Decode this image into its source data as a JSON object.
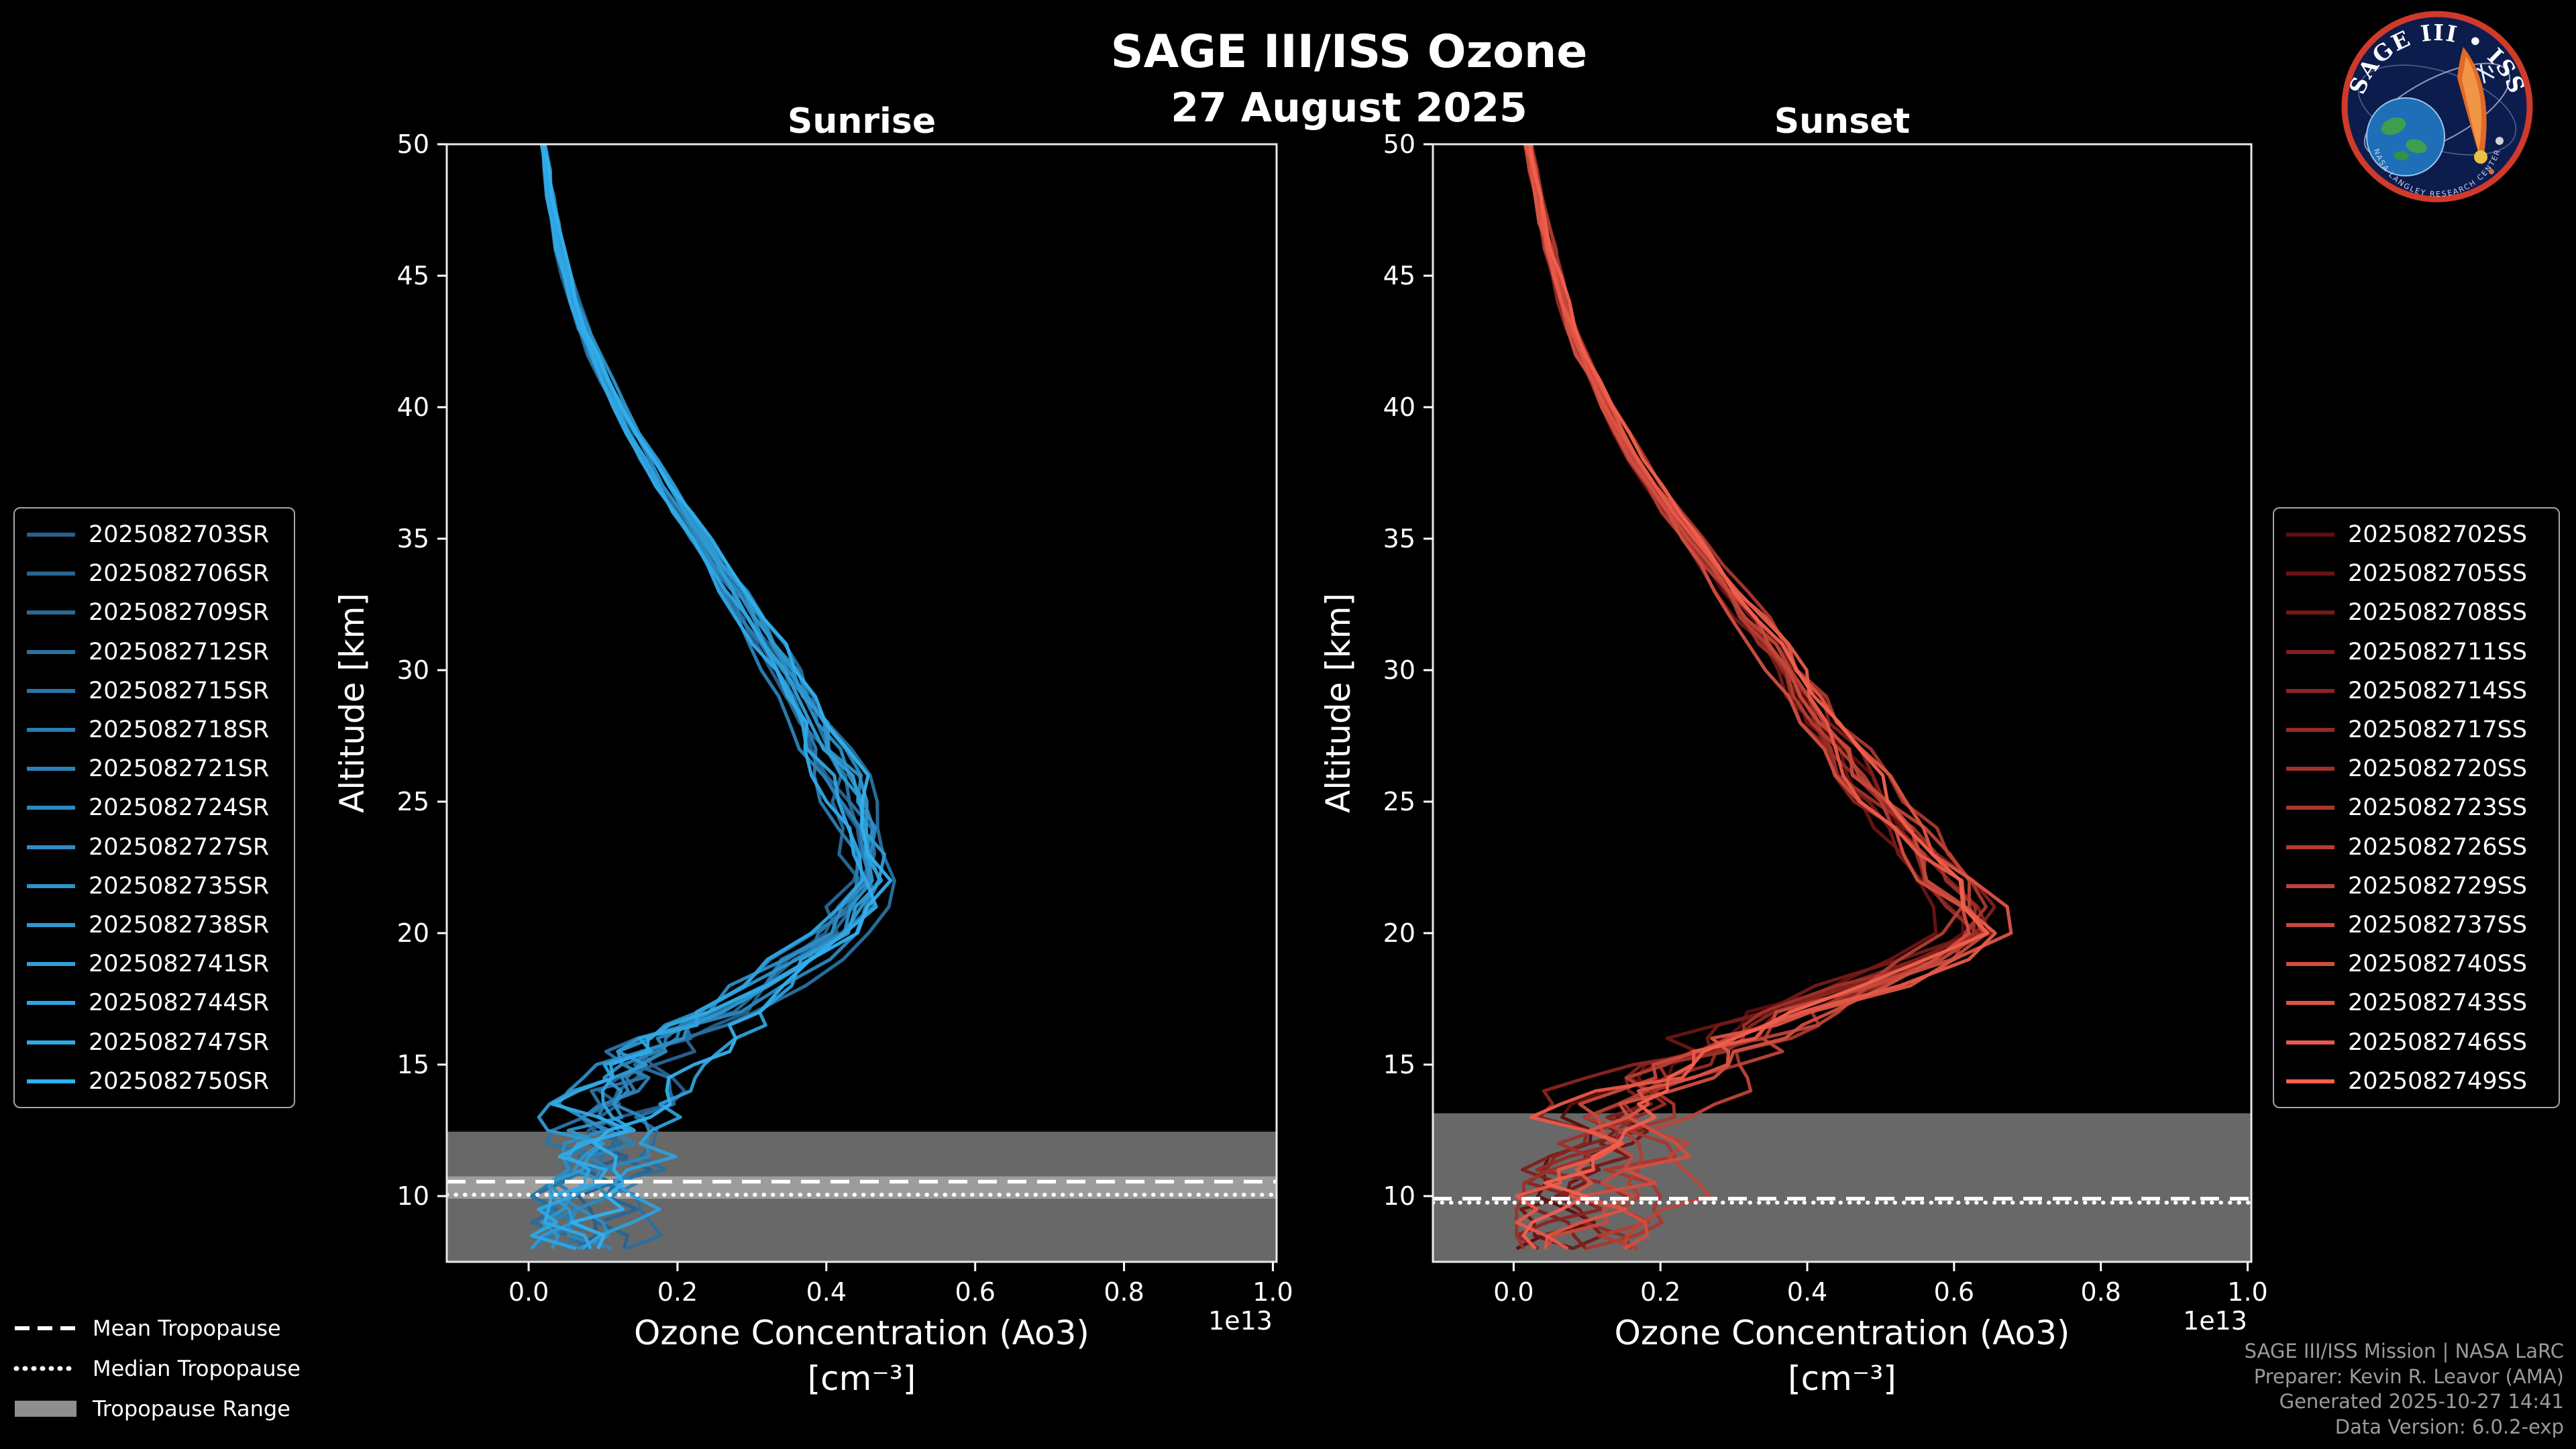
{
  "title": "SAGE III/ISS Ozone",
  "subtitle": "27 August 2025",
  "axes": {
    "ylabel": "Altitude [km]",
    "xlabel_line1": "Ozone Concentration (Ao3)",
    "xlabel_line2": "[cm⁻³]",
    "offset_label": "1e13"
  },
  "chart_data": [
    {
      "type": "line",
      "title": "Sunrise",
      "xlabel": "Ozone Concentration (Ao3) [cm⁻³] ×1e13",
      "ylabel": "Altitude [km]",
      "xlim": [
        -0.11,
        1.005
      ],
      "ylim": [
        7.5,
        50
      ],
      "x_ticks": [
        0.0,
        0.2,
        0.4,
        0.6,
        0.8,
        1.0
      ],
      "x_tick_labels": [
        "0.0",
        "0.2",
        "0.4",
        "0.6",
        "0.8",
        "1.0"
      ],
      "y_ticks": [
        10,
        15,
        20,
        25,
        30,
        35,
        40,
        45,
        50
      ],
      "offset_label": "1e13",
      "legend_position": "outside-left",
      "grid": false,
      "series_labels": [
        "2025082703SR",
        "2025082706SR",
        "2025082709SR",
        "2025082712SR",
        "2025082715SR",
        "2025082718SR",
        "2025082721SR",
        "2025082724SR",
        "2025082727SR",
        "2025082735SR",
        "2025082738SR",
        "2025082741SR",
        "2025082744SR",
        "2025082747SR",
        "2025082750SR"
      ],
      "color_start": "#265f8c",
      "color_end": "#31b0ee",
      "profile_alt": [
        50,
        49,
        48,
        47,
        46,
        45,
        44,
        43,
        42,
        41,
        40,
        39,
        38,
        37,
        36,
        35,
        34,
        33,
        32,
        31,
        30,
        29,
        28,
        27,
        26,
        25,
        24,
        23,
        22,
        21,
        20,
        19,
        18,
        17,
        16.5,
        16,
        15.5,
        15,
        14.5,
        14,
        13.5,
        13,
        12.5,
        12,
        11.5,
        11,
        10.5,
        10,
        9.5,
        9,
        8.5,
        8
      ],
      "profile_value": [
        0.02,
        0.025,
        0.03,
        0.036,
        0.043,
        0.052,
        0.062,
        0.074,
        0.088,
        0.104,
        0.122,
        0.142,
        0.163,
        0.185,
        0.208,
        0.232,
        0.256,
        0.28,
        0.303,
        0.325,
        0.346,
        0.366,
        0.385,
        0.403,
        0.42,
        0.435,
        0.448,
        0.458,
        0.462,
        0.452,
        0.425,
        0.38,
        0.325,
        0.268,
        0.24,
        0.213,
        0.19,
        0.168,
        0.15,
        0.135,
        0.124,
        0.115,
        0.112,
        0.115,
        0.112,
        0.105,
        0.095,
        0.085,
        0.082,
        0.08,
        0.075,
        0.07
      ],
      "tropopause": {
        "mean": 10.55,
        "median": 10.05,
        "range": [
          7.5,
          12.45
        ],
        "inner_range": [
          9.9,
          10.75
        ]
      }
    },
    {
      "type": "line",
      "title": "Sunset",
      "xlabel": "Ozone Concentration (Ao3) [cm⁻³] ×1e13",
      "ylabel": "Altitude [km]",
      "xlim": [
        -0.11,
        1.005
      ],
      "ylim": [
        7.5,
        50
      ],
      "x_ticks": [
        0.0,
        0.2,
        0.4,
        0.6,
        0.8,
        1.0
      ],
      "x_tick_labels": [
        "0.0",
        "0.2",
        "0.4",
        "0.6",
        "0.8",
        "1.0"
      ],
      "y_ticks": [
        10,
        15,
        20,
        25,
        30,
        35,
        40,
        45,
        50
      ],
      "offset_label": "1e13",
      "legend_position": "outside-right",
      "grid": false,
      "series_labels": [
        "2025082702SS",
        "2025082705SS",
        "2025082708SS",
        "2025082711SS",
        "2025082714SS",
        "2025082717SS",
        "2025082720SS",
        "2025082723SS",
        "2025082726SS",
        "2025082729SS",
        "2025082737SS",
        "2025082740SS",
        "2025082743SS",
        "2025082746SS",
        "2025082749SS"
      ],
      "color_start": "#5f0e0e",
      "color_end": "#f2604e",
      "profile_alt": [
        50,
        49,
        48,
        47,
        46,
        45,
        44,
        43,
        42,
        41,
        40,
        39,
        38,
        37,
        36,
        35,
        34,
        33,
        32,
        31,
        30,
        29,
        28,
        27,
        26,
        25,
        24,
        23,
        22,
        21,
        20,
        19,
        18,
        17,
        16.5,
        16,
        15.5,
        15,
        14.5,
        14,
        13.5,
        13,
        12.5,
        12,
        11.5,
        11,
        10.5,
        10,
        9.5,
        9,
        8.5,
        8
      ],
      "profile_value": [
        0.02,
        0.026,
        0.032,
        0.04,
        0.048,
        0.058,
        0.068,
        0.08,
        0.094,
        0.11,
        0.127,
        0.146,
        0.167,
        0.19,
        0.214,
        0.24,
        0.267,
        0.295,
        0.323,
        0.35,
        0.375,
        0.398,
        0.42,
        0.443,
        0.468,
        0.497,
        0.528,
        0.56,
        0.59,
        0.612,
        0.618,
        0.56,
        0.468,
        0.375,
        0.33,
        0.29,
        0.255,
        0.225,
        0.198,
        0.175,
        0.157,
        0.143,
        0.14,
        0.148,
        0.14,
        0.128,
        0.115,
        0.103,
        0.094,
        0.088,
        0.082,
        0.078
      ],
      "tropopause": {
        "mean": 9.9,
        "median": 9.75,
        "range": [
          7.5,
          13.15
        ]
      }
    }
  ],
  "legend_tropopause": [
    {
      "label": "Mean Tropopause",
      "style": "dashed"
    },
    {
      "label": "Median Tropopause",
      "style": "dotted"
    },
    {
      "label": "Tropopause Range",
      "style": "band"
    }
  ],
  "footer": {
    "lines": [
      "SAGE III/ISS Mission | NASA LaRC",
      "Preparer: Kevin R. Leavor (AMA)",
      "Generated 2025-10-27 14:41",
      "Data Version: 6.0.2-exp"
    ]
  },
  "logo": {
    "title": "SAGE III • ISS",
    "arc_text": "NASA LANGLEY RESEARCH CENTER"
  },
  "colors": {
    "background": "#000000",
    "text": "#ffffff",
    "footer_text": "#9b9b9b",
    "band": "#686868",
    "band_inner": "#9c9c9c",
    "band_legend": "#8f8f8f",
    "axis": "#e8e8e8",
    "tropopause_line": "#ffffff"
  }
}
